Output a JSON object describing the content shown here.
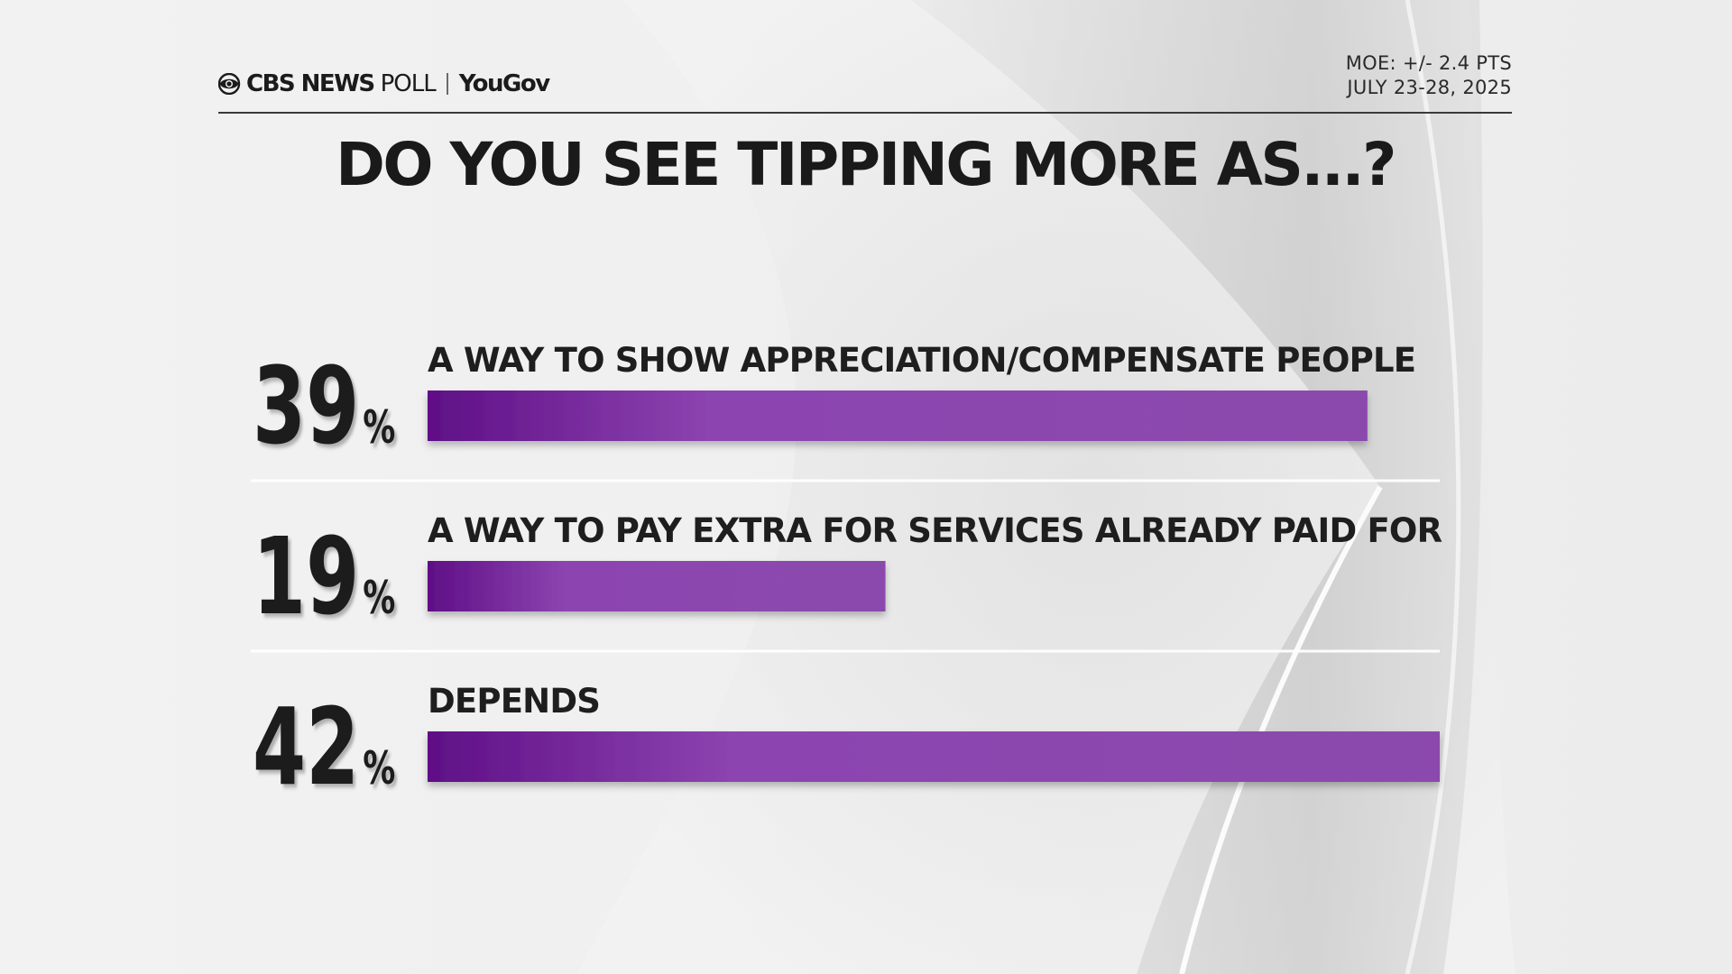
{
  "header": {
    "brand_cbs": "CBS NEWS",
    "brand_poll": "POLL",
    "brand_yougov": "YouGov",
    "moe": "MOE: +/- 2.4 PTS",
    "dates": "JULY 23-28, 2025"
  },
  "icons": {
    "cbs_logo": "cbs-eye-icon"
  },
  "colors": {
    "bar_start": "#5f0f86",
    "bar_mid": "#8c44b0",
    "bar_end": "#8b4aae",
    "text": "#1d1d1d",
    "background": "#f1f1f1"
  },
  "chart_data": {
    "type": "bar",
    "orientation": "horizontal",
    "title": "DO YOU SEE TIPPING MORE AS...?",
    "categories": [
      "A WAY TO SHOW APPRECIATION/COMPENSATE PEOPLE",
      "A WAY TO PAY EXTRA FOR SERVICES ALREADY PAID FOR",
      "DEPENDS"
    ],
    "values": [
      39,
      19,
      42
    ],
    "value_labels": [
      "39",
      "19",
      "42"
    ],
    "unit": "%",
    "xlim": [
      0,
      42
    ]
  }
}
